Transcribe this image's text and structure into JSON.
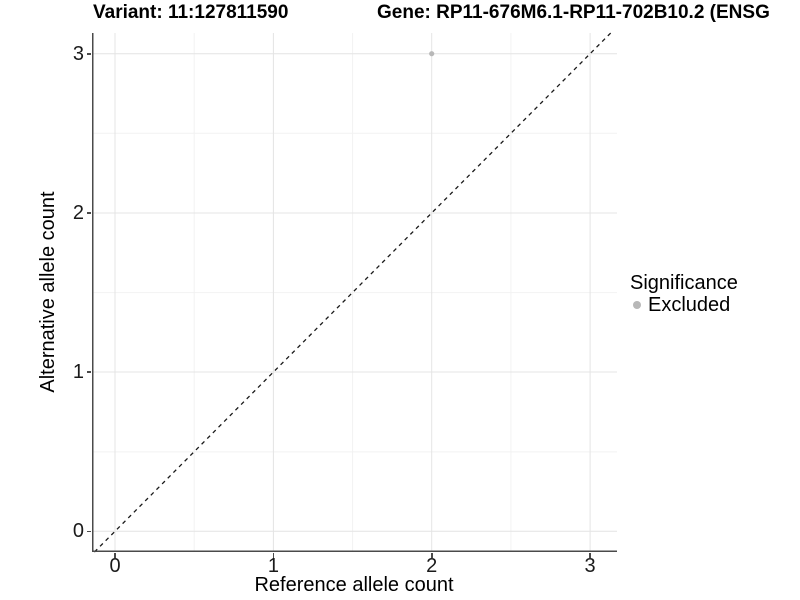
{
  "chart_data": {
    "type": "scatter",
    "title_left": "Variant: 11:127811590",
    "title_right": "Gene: RP11-676M6.1-RP11-702B10.2 (ENSG",
    "xlabel": "Reference allele count",
    "ylabel": "Alternative allele count",
    "x_ticks": [
      0,
      1,
      2,
      3
    ],
    "y_ticks": [
      0,
      1,
      2,
      3
    ],
    "xlim": [
      -0.145,
      3.17
    ],
    "ylim": [
      -0.13,
      3.13
    ],
    "grid": {
      "major_every": 1,
      "minor_every": 0.5,
      "major_color": "#e4e4e4",
      "minor_color": "#f2f2f2"
    },
    "series": [
      {
        "name": "Excluded",
        "color": "#b8b8b8",
        "points": [
          {
            "x": 2,
            "y": 3
          }
        ]
      }
    ],
    "identity_line": {
      "equation": "y = x",
      "style": "dashed",
      "color": "#1a1a1a"
    },
    "legend": {
      "title": "Significance",
      "position": "right",
      "entries": [
        {
          "label": "Excluded",
          "color": "#b8b8b8"
        }
      ]
    }
  },
  "colors": {
    "background": "#ffffff",
    "axis_line": "#4a4a4a",
    "grid_major": "#e4e4e4",
    "grid_minor": "#f2f2f2",
    "tick_label": "#1a1a1a",
    "point": "#b8b8b8"
  }
}
